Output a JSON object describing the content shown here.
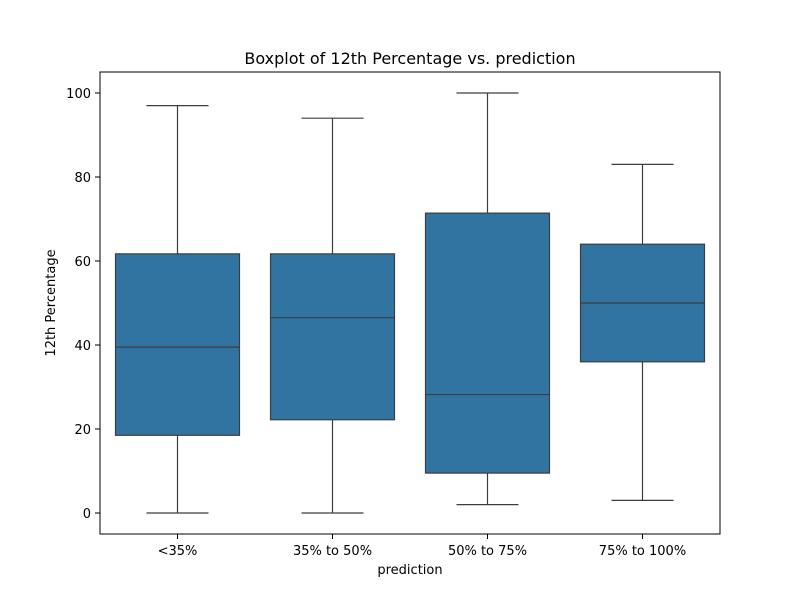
{
  "chart_data": {
    "type": "boxplot",
    "title": "Boxplot of 12th Percentage vs. prediction",
    "xlabel": "prediction",
    "ylabel": "12th Percentage",
    "categories": [
      "<35%",
      "35% to 50%",
      "50% to 75%",
      "75% to 100%"
    ],
    "boxes": [
      {
        "category": "<35%",
        "whisker_low": 0,
        "q1": 18.5,
        "median": 39.5,
        "q3": 61.7,
        "whisker_high": 97
      },
      {
        "category": "35% to 50%",
        "whisker_low": 0,
        "q1": 22.2,
        "median": 46.5,
        "q3": 61.7,
        "whisker_high": 94
      },
      {
        "category": "50% to 75%",
        "whisker_low": 2,
        "q1": 9.5,
        "median": 28.2,
        "q3": 71.4,
        "whisker_high": 100
      },
      {
        "category": "75% to 100%",
        "whisker_low": 3,
        "q1": 36.0,
        "median": 50.0,
        "q3": 64.0,
        "whisker_high": 83
      }
    ],
    "ylim": [
      -5,
      105
    ],
    "yticks": [
      0,
      20,
      40,
      60,
      80,
      100
    ],
    "box_color": "#3274a1",
    "line_color": "#3d3d3d",
    "grid": false,
    "legend": "none"
  }
}
